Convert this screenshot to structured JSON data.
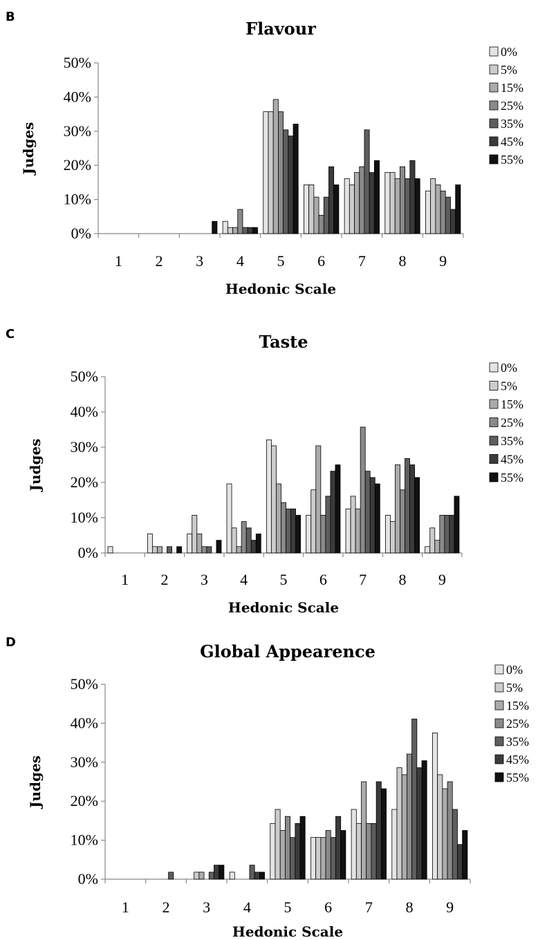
{
  "colors": [
    "#e4e4e4",
    "#cccccc",
    "#ababab",
    "#8a8a8a",
    "#5e5e5e",
    "#3b3b3b",
    "#111111"
  ],
  "chart_data": [
    {
      "panel": "B",
      "type": "bar",
      "title": "Flavour",
      "xlabel": "Hedonic Scale",
      "ylabel": "Judges",
      "ylim": [
        0,
        50
      ],
      "yticks": [
        "0%",
        "10%",
        "20%",
        "30%",
        "40%",
        "50%"
      ],
      "categories": [
        "1",
        "2",
        "3",
        "4",
        "5",
        "6",
        "7",
        "8",
        "9"
      ],
      "legend_position": "top-right",
      "series": [
        {
          "name": "0%",
          "values": [
            0,
            0,
            0,
            3.6,
            35.7,
            14.3,
            16.1,
            17.9,
            12.5
          ]
        },
        {
          "name": "5%",
          "values": [
            0,
            0,
            0,
            1.8,
            35.7,
            14.3,
            14.3,
            17.9,
            16.1
          ]
        },
        {
          "name": "15%",
          "values": [
            0,
            0,
            0,
            1.8,
            39.3,
            10.7,
            17.9,
            16.1,
            14.3
          ]
        },
        {
          "name": "25%",
          "values": [
            0,
            0,
            0,
            7.1,
            35.7,
            5.4,
            19.6,
            19.6,
            12.5
          ]
        },
        {
          "name": "35%",
          "values": [
            0,
            0,
            0,
            1.8,
            30.4,
            10.7,
            30.4,
            16.1,
            10.7
          ]
        },
        {
          "name": "45%",
          "values": [
            0,
            0,
            0,
            1.8,
            28.6,
            19.6,
            17.9,
            21.4,
            7.1
          ]
        },
        {
          "name": "55%",
          "values": [
            0,
            0,
            3.6,
            1.8,
            32.1,
            14.3,
            21.4,
            16.1,
            14.3
          ]
        }
      ]
    },
    {
      "panel": "C",
      "type": "bar",
      "title": "Taste",
      "xlabel": "Hedonic Scale",
      "ylabel": "Judges",
      "ylim": [
        0,
        50
      ],
      "yticks": [
        "0%",
        "10%",
        "20%",
        "30%",
        "40%",
        "50%"
      ],
      "categories": [
        "1",
        "2",
        "3",
        "4",
        "5",
        "6",
        "7",
        "8",
        "9"
      ],
      "legend_position": "top-right",
      "series": [
        {
          "name": "0%",
          "values": [
            1.8,
            5.4,
            5.4,
            19.6,
            32.1,
            10.7,
            12.5,
            10.7,
            1.8
          ]
        },
        {
          "name": "5%",
          "values": [
            0,
            1.8,
            10.7,
            7.1,
            30.4,
            17.9,
            16.1,
            8.9,
            7.1
          ]
        },
        {
          "name": "15%",
          "values": [
            0,
            1.8,
            5.4,
            1.8,
            19.6,
            30.4,
            12.5,
            25.0,
            3.6
          ]
        },
        {
          "name": "25%",
          "values": [
            0,
            0,
            1.8,
            8.9,
            14.3,
            10.7,
            35.7,
            17.9,
            10.7
          ]
        },
        {
          "name": "35%",
          "values": [
            0,
            1.8,
            1.8,
            7.1,
            12.5,
            16.1,
            23.2,
            26.8,
            10.7
          ]
        },
        {
          "name": "45%",
          "values": [
            0,
            0,
            0,
            3.6,
            12.5,
            23.2,
            21.4,
            25.0,
            10.7
          ]
        },
        {
          "name": "55%",
          "values": [
            0,
            1.8,
            3.6,
            5.4,
            10.7,
            25.0,
            19.6,
            21.4,
            16.1
          ]
        }
      ]
    },
    {
      "panel": "D",
      "type": "bar",
      "title": "Global Appearence",
      "xlabel": "Hedonic Scale",
      "ylabel": "Judges",
      "ylim": [
        0,
        50
      ],
      "yticks": [
        "0%",
        "10%",
        "20%",
        "30%",
        "40%",
        "50%"
      ],
      "categories": [
        "1",
        "2",
        "3",
        "4",
        "5",
        "6",
        "7",
        "8",
        "9"
      ],
      "legend_position": "top-right",
      "series": [
        {
          "name": "0%",
          "values": [
            0,
            0,
            0,
            1.8,
            14.3,
            10.7,
            17.9,
            17.9,
            37.5
          ]
        },
        {
          "name": "5%",
          "values": [
            0,
            0,
            1.8,
            0,
            17.9,
            10.7,
            14.3,
            28.6,
            26.8
          ]
        },
        {
          "name": "15%",
          "values": [
            0,
            0,
            1.8,
            0,
            12.5,
            10.7,
            25.0,
            26.8,
            23.2
          ]
        },
        {
          "name": "25%",
          "values": [
            0,
            0,
            0,
            0,
            16.1,
            12.5,
            14.3,
            32.1,
            25.0
          ]
        },
        {
          "name": "35%",
          "values": [
            0,
            1.8,
            1.8,
            3.6,
            10.7,
            10.7,
            14.3,
            41.1,
            17.9
          ]
        },
        {
          "name": "45%",
          "values": [
            0,
            0,
            3.6,
            1.8,
            14.3,
            16.1,
            25.0,
            28.6,
            8.9
          ]
        },
        {
          "name": "55%",
          "values": [
            0,
            0,
            3.6,
            1.8,
            16.1,
            12.5,
            23.2,
            30.4,
            12.5
          ]
        }
      ]
    }
  ]
}
